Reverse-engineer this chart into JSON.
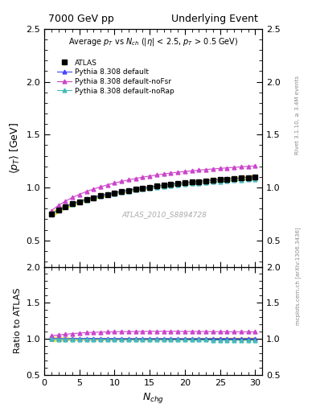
{
  "title_left": "7000 GeV pp",
  "title_right": "Underlying Event",
  "plot_title": "Average $p_T$ vs $N_{ch}$ ($|\\eta|$ < 2.5, $p_T$ > 0.5 GeV)",
  "xlabel": "$N_{chg}$",
  "ylabel_main": "$\\langle p_T\\rangle$ [GeV]",
  "ylabel_ratio": "Ratio to ATLAS",
  "watermark": "ATLAS_2010_S8894728",
  "right_label_top": "Rivet 3.1.10, ≥ 3.4M events",
  "right_label_bottom": "mcplots.cern.ch [arXiv:1306.3436]",
  "ylim_main": [
    0.25,
    2.5
  ],
  "ylim_ratio": [
    0.5,
    2.0
  ],
  "xlim": [
    0,
    31
  ],
  "nch_values": [
    1,
    2,
    3,
    4,
    5,
    6,
    7,
    8,
    9,
    10,
    11,
    12,
    13,
    14,
    15,
    16,
    17,
    18,
    19,
    20,
    21,
    22,
    23,
    24,
    25,
    26,
    27,
    28,
    29,
    30
  ],
  "atlas_avgpt": [
    0.748,
    0.787,
    0.818,
    0.844,
    0.866,
    0.885,
    0.903,
    0.92,
    0.935,
    0.948,
    0.961,
    0.973,
    0.984,
    0.994,
    1.003,
    1.012,
    1.02,
    1.028,
    1.036,
    1.043,
    1.05,
    1.056,
    1.062,
    1.068,
    1.073,
    1.078,
    1.083,
    1.088,
    1.093,
    1.098
  ],
  "atlas_err": [
    0.025,
    0.02,
    0.016,
    0.014,
    0.012,
    0.012,
    0.012,
    0.012,
    0.012,
    0.011,
    0.011,
    0.011,
    0.011,
    0.011,
    0.011,
    0.011,
    0.011,
    0.012,
    0.012,
    0.013,
    0.013,
    0.014,
    0.014,
    0.015,
    0.015,
    0.016,
    0.017,
    0.018,
    0.019,
    0.02
  ],
  "pythia_default_avgpt": [
    0.75,
    0.789,
    0.82,
    0.847,
    0.87,
    0.89,
    0.908,
    0.924,
    0.939,
    0.952,
    0.965,
    0.976,
    0.987,
    0.997,
    1.006,
    1.015,
    1.023,
    1.031,
    1.038,
    1.045,
    1.052,
    1.058,
    1.064,
    1.07,
    1.075,
    1.08,
    1.085,
    1.09,
    1.095,
    1.1
  ],
  "pythia_noFSR_avgpt": [
    0.78,
    0.83,
    0.87,
    0.905,
    0.935,
    0.962,
    0.985,
    1.006,
    1.025,
    1.042,
    1.058,
    1.072,
    1.085,
    1.097,
    1.108,
    1.118,
    1.128,
    1.136,
    1.144,
    1.151,
    1.158,
    1.164,
    1.17,
    1.175,
    1.18,
    1.185,
    1.19,
    1.195,
    1.2,
    1.205
  ],
  "pythia_noRap_avgpt": [
    0.745,
    0.783,
    0.814,
    0.84,
    0.862,
    0.881,
    0.898,
    0.914,
    0.928,
    0.941,
    0.953,
    0.964,
    0.974,
    0.984,
    0.993,
    1.001,
    1.009,
    1.016,
    1.023,
    1.029,
    1.035,
    1.041,
    1.046,
    1.051,
    1.056,
    1.061,
    1.065,
    1.07,
    1.074,
    1.078
  ],
  "atlas_color": "#000000",
  "atlas_marker": "s",
  "pythia_default_color": "#4444ff",
  "pythia_noFSR_color": "#cc44cc",
  "pythia_noRap_color": "#44bbbb",
  "band_color": "#dddd00",
  "band_alpha": 0.6,
  "legend_labels": [
    "ATLAS",
    "Pythia 8.308 default",
    "Pythia 8.308 default-noFsr",
    "Pythia 8.308 default-noRap"
  ],
  "yticks_main": [
    0.5,
    1.0,
    1.5,
    2.0,
    2.5
  ],
  "yticks_ratio": [
    0.5,
    1.0,
    1.5,
    2.0
  ]
}
